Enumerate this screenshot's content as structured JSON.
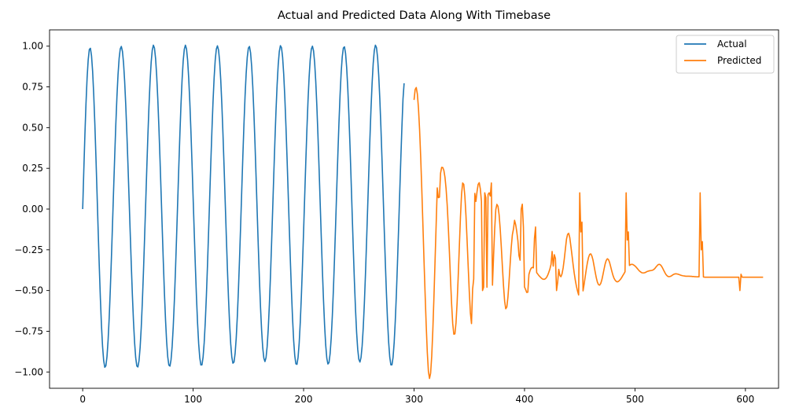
{
  "chart_data": {
    "type": "line",
    "title": "Actual and Predicted Data Along With Timebase",
    "xlabel": "",
    "ylabel": "",
    "xlim": [
      -30,
      630
    ],
    "ylim": [
      -1.1,
      1.1
    ],
    "x_ticks": [
      0,
      100,
      200,
      300,
      400,
      500,
      600
    ],
    "y_ticks": [
      1.0,
      0.75,
      0.5,
      0.25,
      0.0,
      -0.25,
      -0.5,
      -0.75,
      -1.0
    ],
    "x_tick_labels": [
      "0",
      "100",
      "200",
      "300",
      "400",
      "500",
      "600"
    ],
    "y_tick_labels": [
      "1.00",
      "0.75",
      "0.50",
      "0.25",
      "0.00",
      "−0.25",
      "−0.50",
      "−0.75",
      "−1.00"
    ],
    "grid": false,
    "legend_position": "top-right",
    "series": [
      {
        "name": "Actual",
        "color": "#1f77b4",
        "x_start": 0,
        "x_step": 1,
        "values": [
          0.0,
          0.234,
          0.454,
          0.648,
          0.805,
          0.917,
          0.979,
          0.987,
          0.941,
          0.845,
          0.703,
          0.524,
          0.318,
          0.097,
          -0.129,
          -0.346,
          -0.545,
          -0.713,
          -0.843,
          -0.93,
          -0.971,
          -0.962,
          -0.906,
          -0.806,
          -0.667,
          -0.496,
          -0.303,
          -0.094,
          0.119,
          0.327,
          0.52,
          0.688,
          0.825,
          0.925,
          0.983,
          0.998,
          0.968,
          0.896,
          0.784,
          0.638,
          0.464,
          0.271,
          0.067,
          -0.14,
          -0.341,
          -0.528,
          -0.69,
          -0.82,
          -0.912,
          -0.963,
          -0.969,
          -0.931,
          -0.85,
          -0.729,
          -0.573,
          -0.389,
          -0.186,
          0.027,
          0.241,
          0.445,
          0.629,
          0.783,
          0.901,
          0.976,
          1.006,
          0.988,
          0.924,
          0.818,
          0.675,
          0.502,
          0.307,
          0.098,
          -0.115,
          -0.323,
          -0.514,
          -0.68,
          -0.813,
          -0.907,
          -0.958,
          -0.964,
          -0.925,
          -0.843,
          -0.72,
          -0.563,
          -0.377,
          -0.173,
          0.041,
          0.255,
          0.459,
          0.642,
          0.795,
          0.91,
          0.981,
          1.006,
          0.983,
          0.914,
          0.803,
          0.655,
          0.477,
          0.278,
          0.067,
          -0.145,
          -0.349,
          -0.537,
          -0.699,
          -0.826,
          -0.913,
          -0.957,
          -0.956,
          -0.909,
          -0.82,
          -0.692,
          -0.531,
          -0.344,
          -0.138,
          0.074,
          0.284,
          0.482,
          0.659,
          0.806,
          0.915,
          0.982,
          1.002,
          0.976,
          0.905,
          0.792,
          0.641,
          0.462,
          0.262,
          0.051,
          -0.16,
          -0.362,
          -0.546,
          -0.703,
          -0.826,
          -0.908,
          -0.946,
          -0.939,
          -0.886,
          -0.792,
          -0.66,
          -0.496,
          -0.307,
          -0.101,
          0.114,
          0.324,
          0.52,
          0.692,
          0.832,
          0.932,
          0.988,
          0.998,
          0.959,
          0.875,
          0.75,
          0.59,
          0.401,
          0.194,
          -0.021,
          -0.232,
          -0.43,
          -0.603,
          -0.745,
          -0.851,
          -0.915,
          -0.936,
          -0.912,
          -0.844,
          -0.735,
          -0.589,
          -0.413,
          -0.214,
          -0.004,
          0.209,
          0.413,
          0.6,
          0.759,
          0.884,
          0.967,
          1.003,
          0.991,
          0.932,
          0.828,
          0.686,
          0.513,
          0.317,
          0.107,
          -0.106,
          -0.313,
          -0.504,
          -0.671,
          -0.806,
          -0.9,
          -0.95,
          -0.953,
          -0.91,
          -0.822,
          -0.694,
          -0.531,
          -0.342,
          -0.135,
          0.08,
          0.291,
          0.489,
          0.665,
          0.81,
          0.918,
          0.982,
          1.0,
          0.972,
          0.899,
          0.784,
          0.633,
          0.453,
          0.252,
          0.041,
          -0.171,
          -0.373,
          -0.556,
          -0.712,
          -0.834,
          -0.915,
          -0.951,
          -0.942,
          -0.888,
          -0.792,
          -0.658,
          -0.492,
          -0.301,
          -0.094,
          0.121,
          0.331,
          0.527,
          0.698,
          0.837,
          0.935,
          0.989,
          0.996,
          0.955,
          0.868,
          0.741,
          0.579,
          0.389,
          0.181,
          -0.034,
          -0.246,
          -0.443,
          -0.616,
          -0.757,
          -0.861,
          -0.922,
          -0.939,
          -0.911,
          -0.84,
          -0.728,
          -0.58,
          -0.402,
          -0.202,
          0.009,
          0.221,
          0.425,
          0.611,
          0.769,
          0.892,
          0.973,
          1.006,
          0.991,
          0.929,
          0.822,
          0.677,
          0.501,
          0.302,
          0.091,
          -0.123,
          -0.329,
          -0.519,
          -0.685,
          -0.817,
          -0.909,
          -0.956,
          -0.956,
          -0.91,
          -0.819,
          -0.687,
          -0.522,
          -0.33,
          -0.121,
          0.095,
          0.305,
          0.502,
          0.676,
          0.772
        ]
      },
      {
        "name": "Predicted",
        "color": "#ff7f0e",
        "x_start": 300,
        "x_step": 1,
        "values": [
          0.67,
          0.734,
          0.746,
          0.706,
          0.619,
          0.489,
          0.321,
          0.123,
          -0.093,
          -0.314,
          -0.52,
          -0.713,
          -0.88,
          -0.997,
          -1.04,
          -1.007,
          -0.903,
          -0.742,
          -0.542,
          -0.32,
          -0.097,
          0.099,
          0.124,
          0.073,
          0.22,
          0.256,
          0.255,
          0.237,
          0.195,
          0.125,
          0.025,
          -0.108,
          -0.264,
          -0.43,
          -0.582,
          -0.703,
          -0.768,
          -0.766,
          -0.697,
          -0.572,
          -0.411,
          -0.23,
          -0.05,
          0.092,
          0.16,
          0.152,
          0.079,
          -0.04,
          -0.19,
          -0.351,
          -0.507,
          -0.638,
          -0.703,
          -0.492,
          -0.43,
          0.096,
          0.047,
          0.106,
          0.151,
          0.162,
          0.124,
          0.047,
          -0.052,
          -0.159,
          -0.267,
          -0.372,
          -0.475,
          -0.581,
          -0.675,
          -0.708,
          -0.624,
          -0.467,
          -0.287,
          -0.123,
          -0.003,
          0.029,
          0.017,
          -0.035,
          -0.123,
          -0.234,
          -0.356,
          -0.472,
          -0.565,
          -0.612,
          -0.601,
          -0.54,
          -0.445,
          -0.335,
          -0.234,
          -0.158,
          -0.122,
          -0.069,
          -0.096,
          -0.139,
          -0.194,
          -0.286,
          -0.314,
          -0.28,
          -0.325,
          -0.32,
          -0.478,
          -0.494,
          -0.512,
          -0.51,
          -0.401,
          -0.378,
          -0.363,
          -0.358,
          -0.361,
          -0.37,
          -0.38,
          -0.39,
          -0.399,
          -0.408,
          -0.415,
          -0.422,
          -0.428,
          -0.431,
          -0.431,
          -0.427,
          -0.419,
          -0.406,
          -0.388,
          -0.367,
          -0.344,
          -0.321,
          -0.304,
          -0.297,
          -0.303,
          -0.323,
          -0.352,
          -0.385,
          -0.408,
          -0.415,
          -0.397,
          -0.36,
          -0.307,
          -0.246,
          -0.185,
          -0.155,
          -0.149,
          -0.176,
          -0.229,
          -0.284,
          -0.341,
          -0.393,
          -0.437,
          -0.474,
          -0.503,
          -0.527,
          -0.542,
          -0.545,
          -0.531,
          -0.502,
          -0.46,
          -0.413,
          -0.367,
          -0.327,
          -0.296,
          -0.278,
          -0.275,
          -0.288,
          -0.313,
          -0.35,
          -0.387,
          -0.422,
          -0.449,
          -0.464,
          -0.467,
          -0.457,
          -0.435,
          -0.403,
          -0.369,
          -0.337,
          -0.315,
          -0.305,
          -0.31,
          -0.327,
          -0.353,
          -0.38,
          -0.405,
          -0.424,
          -0.436,
          -0.444,
          -0.447,
          -0.444,
          -0.438,
          -0.43,
          -0.42,
          -0.408,
          -0.397,
          -0.385,
          -0.374,
          -0.363,
          -0.354,
          -0.346,
          -0.341,
          -0.339,
          -0.34,
          -0.344,
          -0.349,
          -0.356,
          -0.364,
          -0.372,
          -0.38,
          -0.385,
          -0.39,
          -0.392,
          -0.392,
          -0.39,
          -0.387,
          -0.383,
          -0.381,
          -0.379,
          -0.378,
          -0.377,
          -0.375,
          -0.371,
          -0.365,
          -0.356,
          -0.348,
          -0.341,
          -0.339,
          -0.342,
          -0.35,
          -0.362,
          -0.376,
          -0.389,
          -0.401,
          -0.409,
          -0.414,
          -0.415,
          -0.413,
          -0.41,
          -0.405,
          -0.401,
          -0.398,
          -0.397,
          -0.398,
          -0.4,
          -0.402,
          -0.405,
          -0.407,
          -0.409,
          -0.41,
          -0.411,
          -0.412,
          -0.412,
          -0.412,
          -0.412,
          -0.413,
          -0.413,
          -0.414,
          -0.414,
          -0.415,
          -0.415,
          -0.416,
          -0.416,
          -0.416,
          -0.417,
          -0.417,
          -0.417,
          -0.417,
          -0.418,
          -0.418,
          -0.418,
          -0.418,
          -0.418,
          -0.418,
          -0.418,
          -0.418,
          -0.418,
          -0.418,
          -0.418,
          -0.418,
          -0.418,
          -0.418,
          -0.418,
          -0.418,
          -0.418,
          -0.418,
          -0.418,
          -0.418,
          -0.418,
          -0.418,
          -0.418,
          -0.418,
          -0.418,
          -0.418,
          -0.418,
          -0.418,
          -0.418,
          -0.418,
          -0.418,
          -0.418,
          -0.418,
          -0.418,
          -0.418,
          -0.418,
          -0.418,
          -0.418,
          -0.418,
          -0.418,
          -0.418,
          -0.418,
          -0.418,
          -0.418,
          -0.418,
          -0.418,
          -0.418,
          -0.418,
          -0.418,
          -0.418,
          -0.418,
          -0.418,
          -0.418,
          -0.418
        ]
      }
    ],
    "spikes": [
      {
        "series": "Predicted",
        "points": [
          [
            321,
            0.13
          ],
          [
            322,
            0.07
          ],
          [
            362,
            -0.5
          ],
          [
            363,
            -0.48
          ],
          [
            364,
            0.1
          ],
          [
            365,
            0.07
          ],
          [
            366,
            -0.48
          ],
          [
            367,
            0.09
          ],
          [
            368,
            0.1
          ],
          [
            369,
            0.08
          ],
          [
            370,
            0.16
          ],
          [
            397,
            0.0
          ],
          [
            398,
            0.03
          ],
          [
            399,
            -0.11
          ],
          [
            409,
            -0.18
          ],
          [
            410,
            -0.11
          ],
          [
            424,
            -0.34
          ],
          [
            425,
            -0.26
          ],
          [
            426,
            -0.35
          ],
          [
            427,
            -0.28
          ],
          [
            429,
            -0.5
          ],
          [
            430,
            -0.45
          ],
          [
            431,
            -0.37
          ],
          [
            450,
            0.1
          ],
          [
            451,
            -0.14
          ],
          [
            452,
            -0.08
          ],
          [
            492,
            0.1
          ],
          [
            493,
            -0.19
          ],
          [
            494,
            -0.14
          ],
          [
            559,
            0.1
          ],
          [
            560,
            -0.25
          ],
          [
            561,
            -0.2
          ],
          [
            595,
            -0.5
          ],
          [
            596,
            -0.4
          ]
        ]
      }
    ]
  }
}
